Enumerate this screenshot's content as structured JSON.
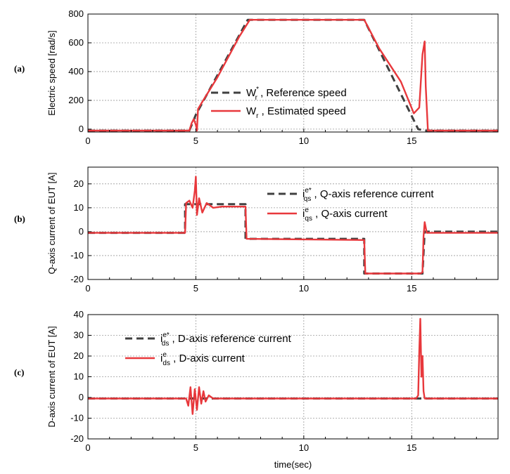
{
  "chart_data": [
    {
      "type": "line",
      "panel_label": "(a)",
      "ylabel": "Electric speed [rad/s]",
      "xlim": [
        0,
        19
      ],
      "ylim": [
        -20,
        800
      ],
      "xticks": [
        "0",
        "5",
        "10",
        "15"
      ],
      "yticks": [
        "0",
        "200",
        "400",
        "600",
        "800"
      ],
      "grid": true,
      "legend_position": "center-left",
      "series": [
        {
          "name": "W",
          "name_sub": "r",
          "name_sup": "*",
          "name_tail": ", Reference speed",
          "style": "dashed",
          "color": "#404040",
          "x": [
            0,
            4.7,
            5.0,
            7.4,
            12.8,
            15.3,
            15.6,
            19
          ],
          "y": [
            -10,
            -10,
            100,
            760,
            760,
            0,
            -10,
            -10
          ]
        },
        {
          "name": "W",
          "name_sub": "r",
          "name_tail": ", Estimated speed",
          "style": "solid",
          "color": "#e8383c",
          "x": [
            0,
            4.7,
            4.8,
            4.9,
            5.0,
            5.05,
            5.1,
            5.3,
            6.0,
            7.0,
            7.5,
            12.8,
            13.5,
            14.5,
            15.1,
            15.35,
            15.5,
            15.6,
            15.65,
            15.75,
            19
          ],
          "y": [
            -10,
            -10,
            40,
            70,
            30,
            -10,
            140,
            190,
            360,
            640,
            760,
            760,
            560,
            330,
            110,
            150,
            520,
            610,
            300,
            -10,
            -10
          ]
        }
      ]
    },
    {
      "type": "line",
      "panel_label": "(b)",
      "ylabel": "Q-axis current of EUT [A]",
      "xlim": [
        0,
        19
      ],
      "ylim": [
        -20,
        27
      ],
      "xticks": [
        "0",
        "5",
        "10",
        "15"
      ],
      "yticks": [
        "-20",
        "-10",
        "0",
        "10",
        "20"
      ],
      "grid": true,
      "legend_position": "top-right",
      "series": [
        {
          "name": "i",
          "name_sub": "qs",
          "name_sup": "e*",
          "name_tail": ", Q-axis reference current",
          "style": "dashed",
          "color": "#404040",
          "x": [
            0,
            4.5,
            4.5,
            5.5,
            7.3,
            7.3,
            12.8,
            12.8,
            15.5,
            15.6,
            19
          ],
          "y": [
            -0.5,
            -0.5,
            11.5,
            11.5,
            11.5,
            -3,
            -3,
            -17.5,
            -17.5,
            0,
            0
          ]
        },
        {
          "name": "i",
          "name_sub": "qs",
          "name_sup": "e",
          "name_tail": ", Q-axis current",
          "style": "solid",
          "color": "#e8383c",
          "x": [
            0,
            4.5,
            4.55,
            4.7,
            4.85,
            4.95,
            5.0,
            5.05,
            5.15,
            5.3,
            5.5,
            5.8,
            6.2,
            7.3,
            7.35,
            12.8,
            12.85,
            15.4,
            15.5,
            15.55,
            15.6,
            15.7,
            19
          ],
          "y": [
            -0.5,
            -0.5,
            12,
            13,
            10,
            17,
            23,
            7,
            14,
            8,
            12,
            10,
            10.5,
            10.5,
            -3,
            -3.5,
            -17.5,
            -17.5,
            -17,
            -2,
            4,
            -0.5,
            -0.5
          ]
        }
      ]
    },
    {
      "type": "line",
      "panel_label": "(c)",
      "xlabel": "time(sec)",
      "ylabel": "D-axis current of EUT [A]",
      "xlim": [
        0,
        19
      ],
      "ylim": [
        -20,
        40
      ],
      "xticks": [
        "0",
        "5",
        "10",
        "15"
      ],
      "yticks": [
        "-20",
        "-10",
        "0",
        "10",
        "20",
        "30",
        "40"
      ],
      "grid": true,
      "legend_position": "top-left",
      "series": [
        {
          "name": "i",
          "name_sub": "ds",
          "name_sup": "e*",
          "name_tail": ", D-axis reference current",
          "style": "dashed",
          "color": "#404040",
          "x": [
            0,
            19
          ],
          "y": [
            -0.5,
            -0.5
          ]
        },
        {
          "name": "i",
          "name_sub": "ds",
          "name_sup": "e",
          "name_tail": ", D-axis current",
          "style": "solid",
          "color": "#e8383c",
          "x": [
            0,
            4.55,
            4.65,
            4.75,
            4.85,
            4.95,
            5.05,
            5.15,
            5.25,
            5.35,
            5.45,
            5.6,
            5.8,
            6.0,
            15.2,
            15.3,
            15.35,
            15.4,
            15.45,
            15.5,
            15.55,
            15.6,
            19
          ],
          "y": [
            -0.5,
            -0.5,
            -4,
            5,
            -8,
            4,
            -6,
            5,
            -3,
            3,
            -2,
            1,
            -0.5,
            -0.5,
            -0.5,
            1,
            22,
            38,
            10,
            20,
            3,
            -0.5,
            -0.5
          ]
        }
      ]
    }
  ]
}
